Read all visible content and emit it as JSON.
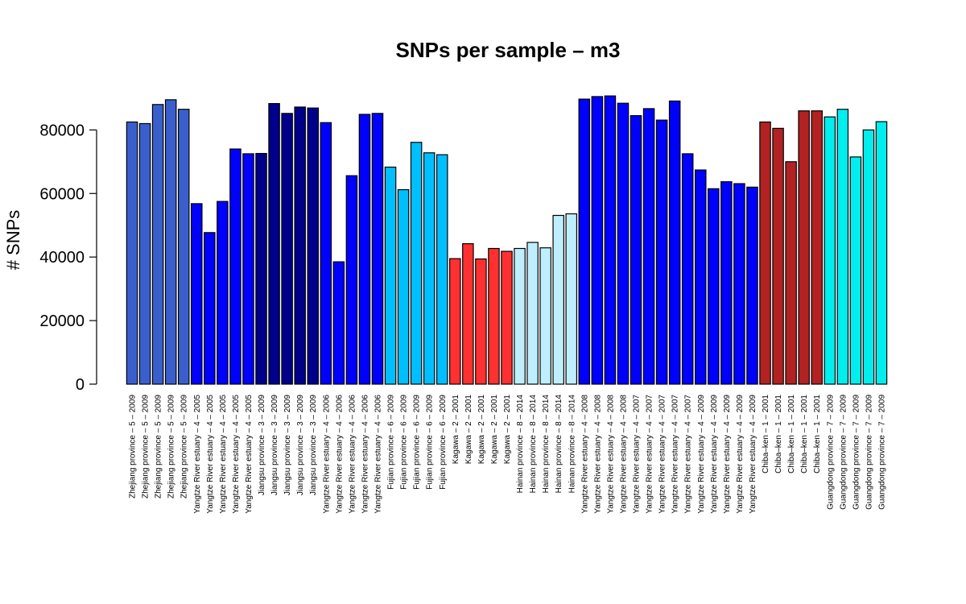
{
  "chart_data": {
    "type": "bar",
    "title": "SNPs per sample – m3",
    "ylabel": "# SNPs",
    "xlabel": "",
    "ylim": [
      0,
      92000
    ],
    "yticks": [
      0,
      20000,
      40000,
      60000,
      80000
    ],
    "grid": false,
    "legend": "none",
    "categories": [
      "Zhejiang province – 5 – 2009",
      "Zhejiang province – 5 – 2009",
      "Zhejiang province – 5 – 2009",
      "Zhejiang province – 5 – 2009",
      "Zhejiang province – 5 – 2009",
      "Yangtze River estuary – 4 – 2005",
      "Yangtze River estuary – 4 – 2005",
      "Yangtze River estuary – 4 – 2005",
      "Yangtze River estuary – 4 – 2005",
      "Yangtze River estuary – 4 – 2005",
      "Jiangsu province – 3 – 2009",
      "Jiangsu province – 3 – 2009",
      "Jiangsu province – 3 – 2009",
      "Jiangsu province – 3 – 2009",
      "Jiangsu province – 3 – 2009",
      "Yangtze River estuary – 4 – 2006",
      "Yangtze River estuary – 4 – 2006",
      "Yangtze River estuary – 4 – 2006",
      "Yangtze River estuary – 4 – 2006",
      "Yangtze River estuary – 4 – 2006",
      "Fujian province – 6 – 2009",
      "Fujian province – 6 – 2009",
      "Fujian province – 6 – 2009",
      "Fujian province – 6 – 2009",
      "Fujian province – 6 – 2009",
      "Kagawa – 2 – 2001",
      "Kagawa – 2 – 2001",
      "Kagawa – 2 – 2001",
      "Kagawa – 2 – 2001",
      "Kagawa – 2 – 2001",
      "Hainan province – 8 – 2014",
      "Hainan province – 8 – 2014",
      "Hainan province – 8 – 2014",
      "Hainan province – 8 – 2014",
      "Hainan province – 8 – 2014",
      "Yangtze River estuary – 4 – 2008",
      "Yangtze River estuary – 4 – 2008",
      "Yangtze River estuary – 4 – 2008",
      "Yangtze River estuary – 4 – 2008",
      "Yangtze River estuary – 4 – 2007",
      "Yangtze River estuary – 4 – 2007",
      "Yangtze River estuary – 4 – 2007",
      "Yangtze River estuary – 4 – 2007",
      "Yangtze River estuary – 4 – 2007",
      "Yangtze River estuary – 4 – 2009",
      "Yangtze River estuary – 4 – 2009",
      "Yangtze River estuary – 4 – 2009",
      "Yangtze River estuary – 4 – 2009",
      "Yangtze River estuary – 4 – 2009",
      "Chiba–ken – 1 – 2001",
      "Chiba–ken – 1 – 2001",
      "Chiba–ken – 1 – 2001",
      "Chiba–ken – 1 – 2001",
      "Chiba–ken – 1 – 2001",
      "Guangdong province – 7 – 2009",
      "Guangdong province – 7 – 2009",
      "Guangdong province – 7 – 2009",
      "Guangdong province – 7 – 2009",
      "Guangdong province – 7 – 2009"
    ],
    "values": [
      82500,
      82000,
      88000,
      89500,
      86500,
      56800,
      47700,
      57500,
      74000,
      72500,
      72600,
      88300,
      85200,
      87200,
      86900,
      82300,
      38500,
      65600,
      84900,
      85200,
      68300,
      61200,
      76100,
      72800,
      72200,
      39500,
      44200,
      39400,
      42700,
      41800,
      42700,
      44600,
      42900,
      53100,
      53600,
      89700,
      90500,
      90700,
      88400,
      84500,
      86700,
      83100,
      89100,
      72500,
      67400,
      61500,
      63700,
      63100,
      62000,
      82500,
      80500,
      70000,
      86000,
      86000,
      84100,
      86500,
      71500,
      80000,
      82600
    ],
    "colors": [
      "#3a5fcd",
      "#3a5fcd",
      "#3a5fcd",
      "#3a5fcd",
      "#3a5fcd",
      "#0000ff",
      "#0000ff",
      "#0000ff",
      "#0000ff",
      "#0000ff",
      "#00008b",
      "#00008b",
      "#00008b",
      "#00008b",
      "#00008b",
      "#0000ff",
      "#0000ff",
      "#0000ff",
      "#0000ff",
      "#0000ff",
      "#00bfff",
      "#00bfff",
      "#00bfff",
      "#00bfff",
      "#00bfff",
      "#ff3030",
      "#ff3030",
      "#ff3030",
      "#ff3030",
      "#ff3030",
      "#bfefff",
      "#bfefff",
      "#bfefff",
      "#bfefff",
      "#bfefff",
      "#0000ff",
      "#0000ff",
      "#0000ff",
      "#0000ff",
      "#0000ff",
      "#0000ff",
      "#0000ff",
      "#0000ff",
      "#0000ff",
      "#0000ff",
      "#0000ff",
      "#0000ff",
      "#0000ff",
      "#0000ff",
      "#b22222",
      "#b22222",
      "#b22222",
      "#b22222",
      "#b22222",
      "#00eeee",
      "#00eeee",
      "#00eeee",
      "#00eeee",
      "#00eeee"
    ]
  }
}
